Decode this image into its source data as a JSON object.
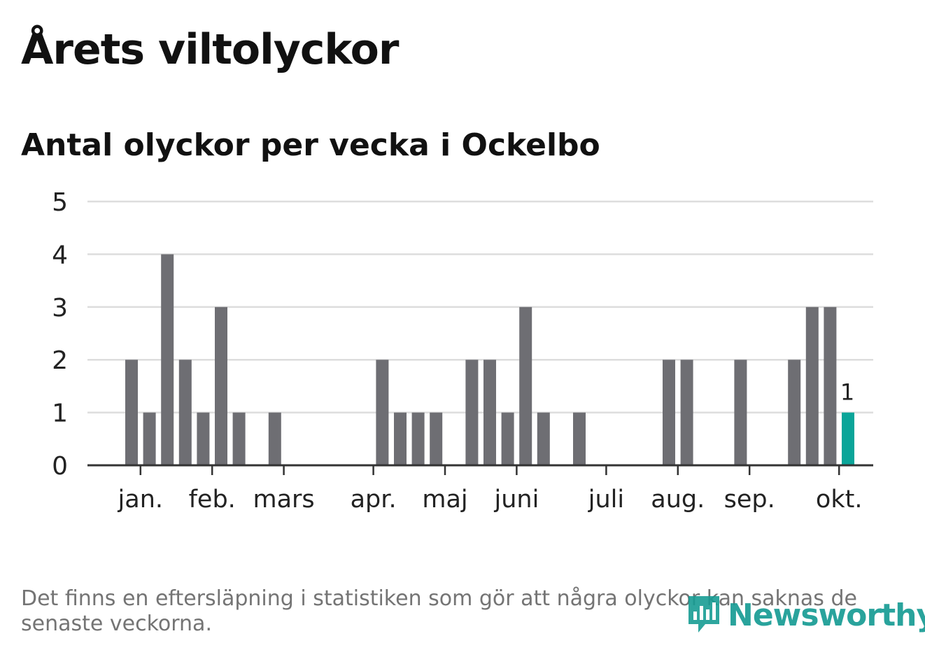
{
  "title": "Årets viltolyckor",
  "subtitle": "Antal olyckor per vecka i Ockelbo",
  "footnote": "Det finns en eftersläpning i statistiken som gör att några olyckor kan saknas de senaste veckorna.",
  "logo": {
    "text": "Newsworthy",
    "icon": "newsworthy-chart-icon"
  },
  "colors": {
    "bar": "#6e6e73",
    "highlight": "#0aa599",
    "grid": "#dddddd",
    "axis": "#333333",
    "text": "#222222"
  },
  "chart_data": {
    "type": "bar",
    "title": "Antal olyckor per vecka i Ockelbo",
    "xlabel": "",
    "ylabel": "",
    "ylim": [
      0,
      5
    ],
    "yticks": [
      0,
      1,
      2,
      3,
      4,
      5
    ],
    "x": [
      1,
      2,
      3,
      4,
      5,
      6,
      7,
      8,
      9,
      10,
      11,
      12,
      13,
      14,
      15,
      16,
      17,
      18,
      19,
      20,
      21,
      22,
      23,
      24,
      25,
      26,
      27,
      28,
      29,
      30,
      31,
      32,
      33,
      34,
      35,
      36,
      37,
      38,
      39,
      40,
      41,
      42,
      43,
      44
    ],
    "values": [
      0,
      0,
      2,
      1,
      4,
      2,
      1,
      3,
      1,
      0,
      1,
      0,
      0,
      0,
      0,
      0,
      2,
      1,
      1,
      1,
      0,
      2,
      2,
      1,
      3,
      1,
      0,
      1,
      0,
      0,
      0,
      0,
      2,
      2,
      0,
      0,
      2,
      0,
      0,
      2,
      3,
      3,
      1,
      0
    ],
    "highlight_index": 42,
    "highlight_label": "1",
    "month_ticks": [
      {
        "label": "jan.",
        "week": 3.5
      },
      {
        "label": "feb.",
        "week": 7.5
      },
      {
        "label": "mars",
        "week": 11.5
      },
      {
        "label": "apr.",
        "week": 16.5
      },
      {
        "label": "maj",
        "week": 20.5
      },
      {
        "label": "juni",
        "week": 24.5
      },
      {
        "label": "juli",
        "week": 29.5
      },
      {
        "label": "aug.",
        "week": 33.5
      },
      {
        "label": "sep.",
        "week": 37.5
      },
      {
        "label": "okt.",
        "week": 42.5
      }
    ]
  }
}
